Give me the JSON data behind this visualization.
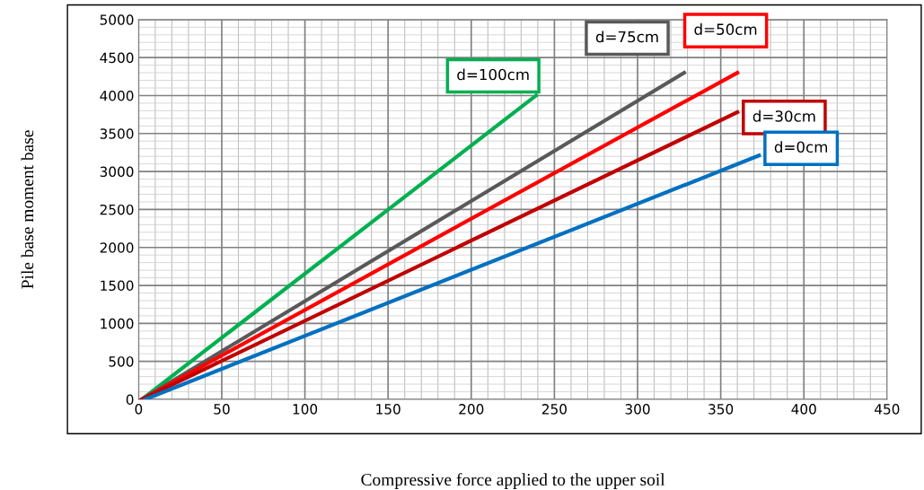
{
  "chart_data": {
    "type": "line",
    "xlabel": "Compressive force applied to the upper soil",
    "ylabel": "Pile base moment base",
    "xlim": [
      0,
      450
    ],
    "ylim": [
      0,
      5000
    ],
    "xticks": [
      0,
      50,
      100,
      150,
      200,
      250,
      300,
      350,
      400,
      450
    ],
    "yticks": [
      0,
      500,
      1000,
      1500,
      2000,
      2500,
      3000,
      3500,
      4000,
      4500,
      5000
    ],
    "grid": true,
    "marker": "none",
    "line_style": "solid",
    "series": [
      {
        "name": "d=100cm",
        "color": "#00b050",
        "x": [
          2,
          239
        ],
        "values": [
          0,
          4000
        ]
      },
      {
        "name": "d=75cm",
        "color": "#595959",
        "x": [
          2,
          328
        ],
        "values": [
          0,
          4300
        ]
      },
      {
        "name": "d=50cm",
        "color": "#ff0000",
        "x": [
          2,
          360
        ],
        "values": [
          0,
          4300
        ]
      },
      {
        "name": "d=30cm",
        "color": "#c00000",
        "x": [
          2,
          360
        ],
        "values": [
          0,
          3780
        ]
      },
      {
        "name": "d=0cm",
        "color": "#0070c0",
        "x": [
          4,
          373
        ],
        "values": [
          0,
          3210
        ]
      }
    ]
  }
}
